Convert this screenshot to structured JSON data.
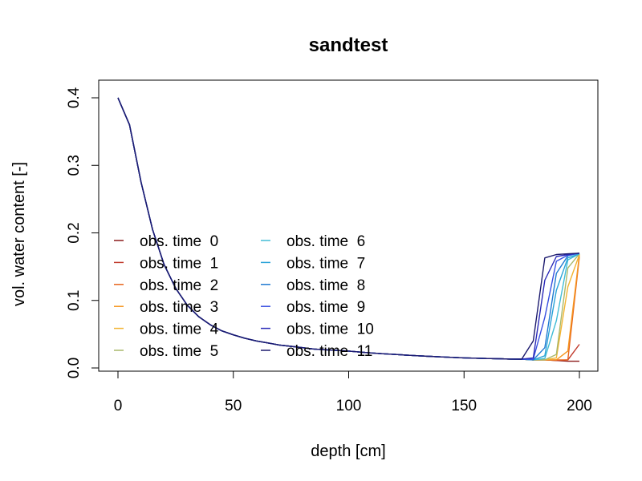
{
  "chart_data": {
    "type": "line",
    "title": "sandtest",
    "xlabel": "depth [cm]",
    "ylabel": "vol. water content [-]",
    "xlim": [
      0,
      200
    ],
    "ylim": [
      0,
      0.4
    ],
    "xticks": [
      0,
      50,
      100,
      150,
      200
    ],
    "yticks": [
      0.0,
      0.1,
      0.2,
      0.3,
      0.4
    ],
    "xtick_labels": [
      "0",
      "50",
      "100",
      "150",
      "200"
    ],
    "ytick_labels": [
      "0.0",
      "0.1",
      "0.2",
      "0.3",
      "0.4"
    ],
    "grid": false,
    "legend_position": "bottom-left",
    "base_profile": {
      "x": [
        0,
        5,
        10,
        15,
        20,
        25,
        30,
        35,
        40,
        45,
        50,
        55,
        60,
        65,
        70,
        75,
        80,
        85,
        90,
        95,
        100,
        105,
        110,
        115,
        120,
        125,
        130,
        135,
        140,
        145,
        150,
        155,
        160,
        165,
        170,
        175
      ],
      "y": [
        0.4,
        0.36,
        0.275,
        0.205,
        0.153,
        0.118,
        0.093,
        0.076,
        0.064,
        0.055,
        0.049,
        0.044,
        0.04,
        0.037,
        0.034,
        0.032,
        0.03,
        0.028,
        0.027,
        0.026,
        0.025,
        0.0235,
        0.0222,
        0.021,
        0.02,
        0.019,
        0.018,
        0.0172,
        0.0164,
        0.0157,
        0.015,
        0.0145,
        0.014,
        0.0136,
        0.0132,
        0.013
      ]
    },
    "series": [
      {
        "name": "obs. time  0",
        "color": "#8b1a1a",
        "tail_x": [
          180,
          185,
          190,
          195,
          200
        ],
        "tail_y": [
          0.012,
          0.012,
          0.011,
          0.01,
          0.01
        ]
      },
      {
        "name": "obs. time  1",
        "color": "#c0392b",
        "tail_x": [
          180,
          185,
          190,
          195,
          200
        ],
        "tail_y": [
          0.012,
          0.012,
          0.011,
          0.012,
          0.035
        ]
      },
      {
        "name": "obs. time  2",
        "color": "#e8641c",
        "tail_x": [
          180,
          185,
          190,
          195,
          200
        ],
        "tail_y": [
          0.012,
          0.012,
          0.012,
          0.012,
          0.165
        ]
      },
      {
        "name": "obs. time  3",
        "color": "#f5961e",
        "tail_x": [
          180,
          185,
          190,
          195,
          200
        ],
        "tail_y": [
          0.012,
          0.012,
          0.012,
          0.025,
          0.168
        ]
      },
      {
        "name": "obs. time  4",
        "color": "#f2b431",
        "tail_x": [
          180,
          185,
          190,
          195,
          200
        ],
        "tail_y": [
          0.012,
          0.012,
          0.015,
          0.12,
          0.168
        ]
      },
      {
        "name": "obs. time  5",
        "color": "#a9b86a",
        "tail_x": [
          180,
          185,
          190,
          195,
          200
        ],
        "tail_y": [
          0.012,
          0.012,
          0.02,
          0.148,
          0.169
        ]
      },
      {
        "name": "obs. time  6",
        "color": "#42bcd6",
        "tail_x": [
          180,
          185,
          190,
          195,
          200
        ],
        "tail_y": [
          0.012,
          0.014,
          0.07,
          0.16,
          0.169
        ]
      },
      {
        "name": "obs. time  7",
        "color": "#29a3d8",
        "tail_x": [
          180,
          185,
          190,
          195,
          200
        ],
        "tail_y": [
          0.012,
          0.018,
          0.115,
          0.163,
          0.169
        ]
      },
      {
        "name": "obs. time  8",
        "color": "#1f7ad1",
        "tail_x": [
          180,
          185,
          190,
          195,
          200
        ],
        "tail_y": [
          0.012,
          0.03,
          0.14,
          0.166,
          0.17
        ]
      },
      {
        "name": "obs. time  9",
        "color": "#3850e0",
        "tail_x": [
          180,
          185,
          190,
          195,
          200
        ],
        "tail_y": [
          0.013,
          0.075,
          0.158,
          0.167,
          0.17
        ]
      },
      {
        "name": "obs. time  10",
        "color": "#2b2ab8",
        "tail_x": [
          180,
          185,
          190,
          195,
          200
        ],
        "tail_y": [
          0.015,
          0.13,
          0.165,
          0.168,
          0.17
        ]
      },
      {
        "name": "obs. time  11",
        "color": "#1c1a6e",
        "tail_x": [
          180,
          185,
          190,
          195,
          200
        ],
        "tail_y": [
          0.04,
          0.163,
          0.168,
          0.169,
          0.17
        ]
      }
    ]
  }
}
